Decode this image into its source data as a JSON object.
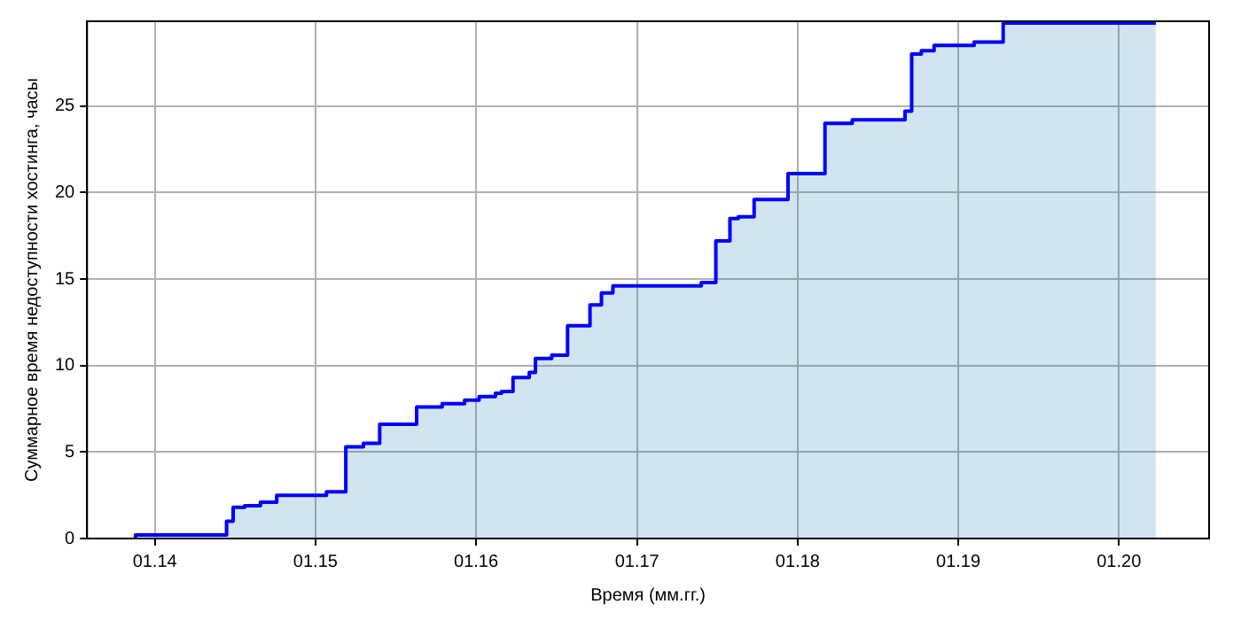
{
  "chart_data": {
    "type": "step",
    "xlabel": "Время (мм.гг.)",
    "ylabel": "Суммарное время недоступности хостинга, часы",
    "x": [
      "2013-11-18",
      "2014-06-13",
      "2014-06-28",
      "2014-07-24",
      "2014-08-29",
      "2014-10-05",
      "2015-01-26",
      "2015-03-11",
      "2015-04-20",
      "2015-05-27",
      "2015-08-19",
      "2015-10-16",
      "2015-12-06",
      "2016-01-08",
      "2016-02-14",
      "2016-02-28",
      "2016-03-25",
      "2016-05-01",
      "2016-05-15",
      "2016-06-21",
      "2016-07-27",
      "2016-09-16",
      "2016-10-12",
      "2016-11-07",
      "2017-05-27",
      "2017-06-29",
      "2017-07-31",
      "2017-08-19",
      "2017-09-24",
      "2017-12-10",
      "2018-03-04",
      "2018-05-05",
      "2018-09-02",
      "2018-09-17",
      "2018-10-09",
      "2018-11-07",
      "2019-02-06",
      "2019-04-13",
      "2020-03-25"
    ],
    "series": [
      {
        "color": "#0000ff",
        "values": [
          0,
          0.2,
          1.0,
          1.8,
          1.9,
          2.1,
          2.5,
          2.7,
          5.3,
          5.5,
          6.6,
          7.6,
          7.8,
          8.0,
          8.2,
          8.4,
          8.5,
          9.3,
          9.6,
          10.4,
          10.6,
          12.3,
          13.5,
          14.2,
          14.6,
          14.8,
          17.2,
          18.5,
          18.6,
          19.6,
          21.1,
          24.0,
          24.2,
          24.7,
          28.0,
          28.2,
          28.5,
          28.7,
          29.8
        ]
      }
    ],
    "xlim": [
      "2013-07-31",
      "2020-07-24"
    ],
    "xticks": [
      {
        "value": "2014-01",
        "label": "01.14"
      },
      {
        "value": "2015-01",
        "label": "01.15"
      },
      {
        "value": "2016-01",
        "label": "01.16"
      },
      {
        "value": "2017-01",
        "label": "01.17"
      },
      {
        "value": "2018-01",
        "label": "01.18"
      },
      {
        "value": "2019-01",
        "label": "01.19"
      },
      {
        "value": "2020-01",
        "label": "01.20"
      }
    ],
    "ylim": [
      0,
      29.9
    ],
    "yticks": [
      0,
      5,
      10,
      15,
      20,
      25
    ],
    "grid": true,
    "legend": false
  }
}
